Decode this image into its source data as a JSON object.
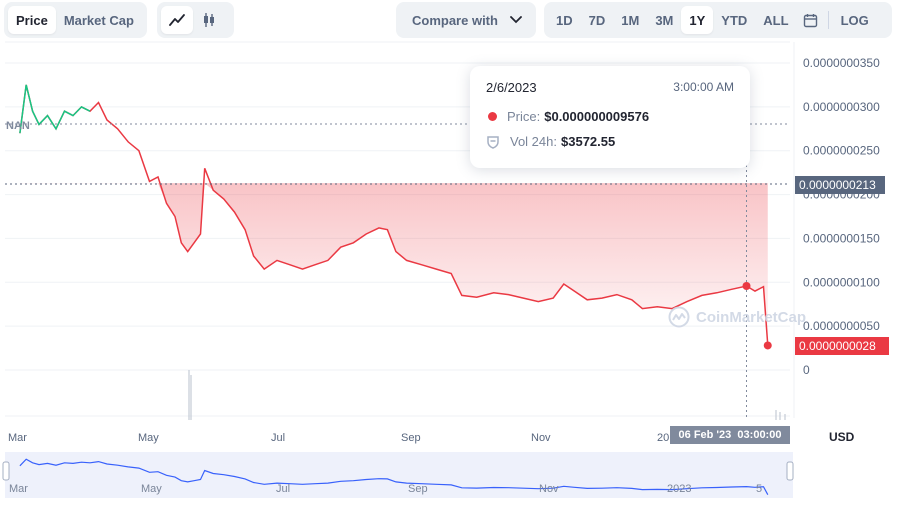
{
  "toolbar": {
    "metric_tabs": [
      "Price",
      "Market Cap"
    ],
    "active_metric": "Price",
    "chart_style_icons": [
      "line-chart-icon",
      "candlestick-icon"
    ],
    "compare_label": "Compare with",
    "ranges": [
      "1D",
      "7D",
      "1M",
      "3M",
      "1Y",
      "YTD",
      "ALL"
    ],
    "active_range": "1Y",
    "log_label": "LOG"
  },
  "tooltip": {
    "date": "2/6/2023",
    "time": "3:00:00 AM",
    "price_label": "Price:",
    "price_value": "$0.000000009576",
    "vol_label": "Vol 24h:",
    "vol_value": "$3572.55"
  },
  "ref_price_tag": "0.0000000213",
  "last_price_tag": "0.0000000028",
  "crosshair_date": "06 Feb '23",
  "crosshair_time": "03:00:00",
  "currency": "USD",
  "nan_label": "NAN",
  "watermark": "CoinMarketCap",
  "colors": {
    "down": "#ea3943",
    "up": "#16c784",
    "nav_line": "#3861fb"
  },
  "chart_data": {
    "type": "line",
    "y_ticks": [
      "0",
      "0.0000000050",
      "0.0000000100",
      "0.0000000150",
      "0.0000000200",
      "0.0000000250",
      "0.0000000300",
      "0.0000000350"
    ],
    "ylim": [
      0,
      3.6e-08
    ],
    "x_ticks": [
      "Mar",
      "May",
      "Jul",
      "Sep",
      "Nov",
      "20"
    ],
    "nav_ticks": [
      "Mar",
      "May",
      "Jul",
      "Sep",
      "Nov",
      "2023",
      "5"
    ],
    "reference_price": 2.13e-08,
    "series": [
      {
        "points": [
          [
            "2022-03-01",
            2.7e-08
          ],
          [
            "2022-03-04",
            3.25e-08
          ],
          [
            "2022-03-07",
            2.95e-08
          ],
          [
            "2022-03-10",
            2.8e-08
          ],
          [
            "2022-03-14",
            2.9e-08
          ],
          [
            "2022-03-18",
            2.75e-08
          ],
          [
            "2022-03-22",
            2.95e-08
          ],
          [
            "2022-03-26",
            2.9e-08
          ],
          [
            "2022-03-30",
            3e-08
          ],
          [
            "2022-04-03",
            2.95e-08
          ],
          [
            "2022-04-07",
            3.05e-08
          ],
          [
            "2022-04-11",
            2.85e-08
          ],
          [
            "2022-04-16",
            2.75e-08
          ],
          [
            "2022-04-21",
            2.6e-08
          ],
          [
            "2022-04-26",
            2.5e-08
          ],
          [
            "2022-05-01",
            2.15e-08
          ],
          [
            "2022-05-05",
            2.2e-08
          ],
          [
            "2022-05-09",
            1.9e-08
          ],
          [
            "2022-05-13",
            1.75e-08
          ],
          [
            "2022-05-16",
            1.45e-08
          ],
          [
            "2022-05-19",
            1.35e-08
          ],
          [
            "2022-05-22",
            1.45e-08
          ],
          [
            "2022-05-25",
            1.55e-08
          ],
          [
            "2022-05-27",
            2.3e-08
          ],
          [
            "2022-05-31",
            2.05e-08
          ],
          [
            "2022-06-05",
            1.95e-08
          ],
          [
            "2022-06-10",
            1.8e-08
          ],
          [
            "2022-06-15",
            1.6e-08
          ],
          [
            "2022-06-19",
            1.3e-08
          ],
          [
            "2022-06-24",
            1.15e-08
          ],
          [
            "2022-06-30",
            1.25e-08
          ],
          [
            "2022-07-06",
            1.2e-08
          ],
          [
            "2022-07-12",
            1.15e-08
          ],
          [
            "2022-07-18",
            1.2e-08
          ],
          [
            "2022-07-24",
            1.25e-08
          ],
          [
            "2022-07-30",
            1.4e-08
          ],
          [
            "2022-08-05",
            1.45e-08
          ],
          [
            "2022-08-11",
            1.55e-08
          ],
          [
            "2022-08-17",
            1.62e-08
          ],
          [
            "2022-08-21",
            1.6e-08
          ],
          [
            "2022-08-25",
            1.35e-08
          ],
          [
            "2022-08-30",
            1.25e-08
          ],
          [
            "2022-09-06",
            1.2e-08
          ],
          [
            "2022-09-13",
            1.15e-08
          ],
          [
            "2022-09-20",
            1.1e-08
          ],
          [
            "2022-09-25",
            8.5e-09
          ],
          [
            "2022-10-02",
            8.3e-09
          ],
          [
            "2022-10-10",
            8.8e-09
          ],
          [
            "2022-10-17",
            8.6e-09
          ],
          [
            "2022-10-24",
            8.2e-09
          ],
          [
            "2022-10-31",
            7.8e-09
          ],
          [
            "2022-11-07",
            8.2e-09
          ],
          [
            "2022-11-12",
            9.8e-09
          ],
          [
            "2022-11-17",
            9e-09
          ],
          [
            "2022-11-23",
            8e-09
          ],
          [
            "2022-11-30",
            8.2e-09
          ],
          [
            "2022-12-07",
            8.6e-09
          ],
          [
            "2022-12-14",
            8e-09
          ],
          [
            "2022-12-19",
            7e-09
          ],
          [
            "2022-12-26",
            7.2e-09
          ],
          [
            "2023-01-02",
            7e-09
          ],
          [
            "2023-01-09",
            7.8e-09
          ],
          [
            "2023-01-16",
            8.5e-09
          ],
          [
            "2023-01-23",
            8.8e-09
          ],
          [
            "2023-01-30",
            9.2e-09
          ],
          [
            "2023-02-06",
            9.576e-09
          ],
          [
            "2023-02-10",
            9e-09
          ],
          [
            "2023-02-14",
            9.5e-09
          ],
          [
            "2023-02-16",
            2.8e-09
          ]
        ]
      }
    ],
    "highlight": {
      "x": "2023-02-06",
      "y": 9.576e-09
    }
  }
}
